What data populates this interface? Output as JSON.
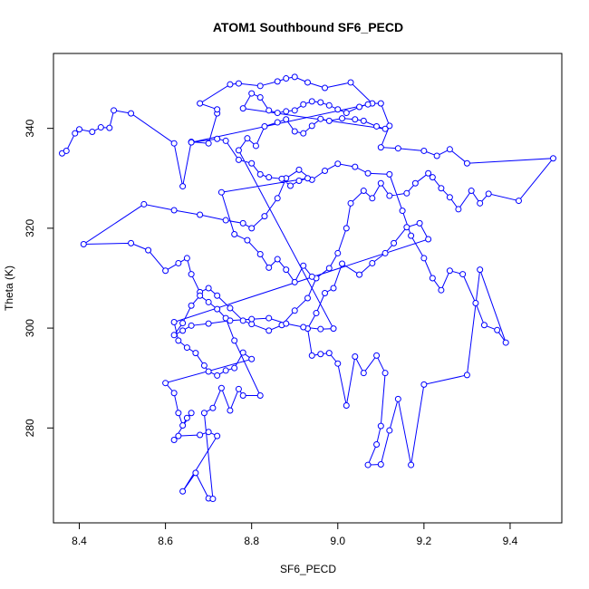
{
  "chart_data": {
    "type": "scatter",
    "title": "ATOM1 Southbound SF6_PECD",
    "xlabel": "SF6_PECD",
    "ylabel": "Theta (K)",
    "xlim": [
      8.34,
      9.52
    ],
    "ylim": [
      261,
      355
    ],
    "xticks": [
      8.4,
      8.6,
      8.8,
      9.0,
      9.2,
      9.4
    ],
    "yticks": [
      280,
      300,
      320,
      340
    ],
    "tick_labels_x": [
      "8.4",
      "8.6",
      "8.8",
      "9.0",
      "9.2",
      "9.4"
    ],
    "tick_labels_y": [
      "280",
      "300",
      "320",
      "340"
    ],
    "grid": false,
    "legend": "none",
    "series_color": "#0000ff",
    "marker": "open-circle",
    "connected": true,
    "points": [
      [
        8.36,
        335
      ],
      [
        8.37,
        335.5
      ],
      [
        8.39,
        339
      ],
      [
        8.4,
        339.8
      ],
      [
        8.43,
        339.3
      ],
      [
        8.45,
        340.2
      ],
      [
        8.47,
        340.1
      ],
      [
        8.48,
        343.6
      ],
      [
        8.52,
        343
      ],
      [
        8.62,
        337
      ],
      [
        8.64,
        328.4
      ],
      [
        8.66,
        337.3
      ],
      [
        8.7,
        337
      ],
      [
        8.72,
        343
      ],
      [
        8.72,
        343.8
      ],
      [
        8.68,
        345
      ],
      [
        8.75,
        348.8
      ],
      [
        8.77,
        349
      ],
      [
        8.82,
        348.5
      ],
      [
        8.86,
        349.4
      ],
      [
        8.88,
        350
      ],
      [
        8.9,
        350.3
      ],
      [
        8.93,
        349.2
      ],
      [
        8.97,
        348.1
      ],
      [
        9.03,
        349.2
      ],
      [
        9.08,
        345
      ],
      [
        9.1,
        345
      ],
      [
        9.12,
        340.5
      ],
      [
        9.1,
        336.2
      ],
      [
        9.14,
        336
      ],
      [
        9.2,
        335.5
      ],
      [
        9.23,
        334.5
      ],
      [
        9.26,
        335.8
      ],
      [
        9.3,
        333
      ],
      [
        9.5,
        334
      ],
      [
        9.42,
        325.5
      ],
      [
        9.35,
        326.9
      ],
      [
        9.33,
        325
      ],
      [
        9.31,
        327.5
      ],
      [
        9.28,
        323.8
      ],
      [
        9.26,
        326.2
      ],
      [
        9.24,
        328
      ],
      [
        9.22,
        330.2
      ],
      [
        9.21,
        331
      ],
      [
        9.18,
        329
      ],
      [
        9.16,
        327
      ],
      [
        9.12,
        326.5
      ],
      [
        9.1,
        329
      ],
      [
        9.08,
        326
      ],
      [
        9.06,
        327.5
      ],
      [
        9.03,
        325
      ],
      [
        9.02,
        320
      ],
      [
        9.0,
        315
      ],
      [
        8.98,
        312
      ],
      [
        8.95,
        310
      ],
      [
        8.93,
        306
      ],
      [
        8.9,
        303.5
      ],
      [
        8.87,
        300.6
      ],
      [
        8.84,
        299.5
      ],
      [
        8.8,
        300.8
      ],
      [
        8.78,
        301.5
      ],
      [
        8.75,
        304
      ],
      [
        8.72,
        306.5
      ],
      [
        8.7,
        308
      ],
      [
        8.68,
        307.2
      ],
      [
        8.66,
        310.8
      ],
      [
        8.65,
        314
      ],
      [
        8.63,
        313
      ],
      [
        8.6,
        311.5
      ],
      [
        8.56,
        315.6
      ],
      [
        8.52,
        317
      ],
      [
        8.41,
        316.8
      ],
      [
        8.55,
        324.8
      ],
      [
        8.62,
        323.6
      ],
      [
        8.68,
        322.7
      ],
      [
        8.74,
        321.6
      ],
      [
        8.78,
        321
      ],
      [
        8.8,
        320
      ],
      [
        8.83,
        322.4
      ],
      [
        8.86,
        326
      ],
      [
        8.88,
        330
      ],
      [
        8.91,
        331.7
      ],
      [
        8.94,
        329.7
      ],
      [
        8.97,
        331.5
      ],
      [
        9.0,
        332.9
      ],
      [
        9.04,
        332.3
      ],
      [
        9.07,
        331
      ],
      [
        9.12,
        330.8
      ],
      [
        9.15,
        323.5
      ],
      [
        9.17,
        318.5
      ],
      [
        9.2,
        314
      ],
      [
        9.22,
        310
      ],
      [
        9.24,
        307.6
      ],
      [
        9.26,
        311.5
      ],
      [
        9.29,
        310.8
      ],
      [
        9.32,
        305
      ],
      [
        9.34,
        300.6
      ],
      [
        9.37,
        299.6
      ],
      [
        9.39,
        297.1
      ],
      [
        9.33,
        311.7
      ],
      [
        9.3,
        290.6
      ],
      [
        9.2,
        288.7
      ],
      [
        9.17,
        272.6
      ],
      [
        9.14,
        285.8
      ],
      [
        9.12,
        279.5
      ],
      [
        9.1,
        272.7
      ],
      [
        9.07,
        272.6
      ],
      [
        9.09,
        276.7
      ],
      [
        9.1,
        280.4
      ],
      [
        9.11,
        291
      ],
      [
        9.09,
        294.5
      ],
      [
        9.06,
        291
      ],
      [
        9.04,
        294.3
      ],
      [
        9.02,
        284.5
      ],
      [
        9.0,
        292.9
      ],
      [
        8.98,
        295
      ],
      [
        8.96,
        294.8
      ],
      [
        8.94,
        294.5
      ],
      [
        8.93,
        299.9
      ],
      [
        8.95,
        303
      ],
      [
        8.97,
        307
      ],
      [
        8.99,
        308
      ],
      [
        9.01,
        312.9
      ],
      [
        9.05,
        310.7
      ],
      [
        9.08,
        313
      ],
      [
        9.11,
        315
      ],
      [
        9.13,
        317
      ],
      [
        9.16,
        320.2
      ],
      [
        9.19,
        321
      ],
      [
        9.21,
        317.8
      ],
      [
        8.62,
        301.2
      ],
      [
        8.63,
        297.5
      ],
      [
        8.65,
        296.1
      ],
      [
        8.67,
        295
      ],
      [
        8.69,
        292.5
      ],
      [
        8.7,
        291.3
      ],
      [
        8.72,
        290.5
      ],
      [
        8.74,
        291.5
      ],
      [
        8.76,
        292
      ],
      [
        8.78,
        295.1
      ],
      [
        8.8,
        293.8
      ],
      [
        8.6,
        289
      ],
      [
        8.62,
        287
      ],
      [
        8.63,
        283
      ],
      [
        8.64,
        280.5
      ],
      [
        8.65,
        282
      ],
      [
        8.66,
        283
      ],
      [
        8.62,
        277.6
      ],
      [
        8.63,
        278.4
      ],
      [
        8.68,
        278.6
      ],
      [
        8.7,
        279.2
      ],
      [
        8.72,
        278.4
      ],
      [
        8.64,
        267.3
      ],
      [
        8.67,
        271
      ],
      [
        8.7,
        265.9
      ],
      [
        8.71,
        265.8
      ],
      [
        8.69,
        283
      ],
      [
        8.71,
        284
      ],
      [
        8.73,
        288
      ],
      [
        8.75,
        283.5
      ],
      [
        8.77,
        287.8
      ],
      [
        8.78,
        286.5
      ],
      [
        8.82,
        286.5
      ],
      [
        8.76,
        297.5
      ],
      [
        8.74,
        302
      ],
      [
        8.72,
        303.8
      ],
      [
        8.7,
        305.2
      ],
      [
        8.68,
        306.5
      ],
      [
        8.66,
        304.5
      ],
      [
        8.64,
        301
      ],
      [
        8.62,
        298.6
      ],
      [
        8.64,
        299.5
      ],
      [
        8.66,
        300.5
      ],
      [
        8.7,
        300.9
      ],
      [
        8.75,
        301.5
      ],
      [
        8.8,
        301.8
      ],
      [
        8.84,
        302
      ],
      [
        8.88,
        300.9
      ],
      [
        8.92,
        300.2
      ],
      [
        8.96,
        299.8
      ],
      [
        8.99,
        299.9
      ],
      [
        8.77,
        335.6
      ],
      [
        8.79,
        338
      ],
      [
        8.81,
        336.5
      ],
      [
        8.83,
        340.4
      ],
      [
        8.86,
        341.2
      ],
      [
        8.88,
        341.8
      ],
      [
        8.9,
        339.4
      ],
      [
        8.92,
        339
      ],
      [
        8.94,
        340.5
      ],
      [
        8.96,
        341.9
      ],
      [
        8.98,
        341.5
      ],
      [
        9.01,
        342
      ],
      [
        9.04,
        341.8
      ],
      [
        9.06,
        341.5
      ],
      [
        9.09,
        340.4
      ],
      [
        9.11,
        339.9
      ],
      [
        8.78,
        344
      ],
      [
        8.8,
        347
      ],
      [
        8.82,
        346.2
      ],
      [
        8.84,
        343.6
      ],
      [
        8.86,
        343.1
      ],
      [
        8.88,
        343.4
      ],
      [
        8.9,
        343.6
      ],
      [
        8.92,
        344.8
      ],
      [
        8.94,
        345.4
      ],
      [
        8.96,
        345.2
      ],
      [
        8.98,
        344.6
      ],
      [
        9.0,
        343.8
      ],
      [
        9.02,
        343.1
      ],
      [
        9.05,
        344.3
      ],
      [
        9.07,
        344.8
      ],
      [
        8.66,
        337.2
      ],
      [
        8.72,
        337.9
      ],
      [
        8.74,
        337.5
      ],
      [
        8.77,
        333.7
      ],
      [
        8.8,
        333
      ],
      [
        8.82,
        330.8
      ],
      [
        8.84,
        330.2
      ],
      [
        8.87,
        329.9
      ],
      [
        8.89,
        328.5
      ],
      [
        8.91,
        329.5
      ],
      [
        8.93,
        330
      ],
      [
        8.73,
        327.2
      ],
      [
        8.76,
        318.8
      ],
      [
        8.79,
        317.6
      ],
      [
        8.82,
        314.8
      ],
      [
        8.84,
        312.1
      ],
      [
        8.86,
        313.8
      ],
      [
        8.88,
        311.7
      ],
      [
        8.9,
        309.2
      ],
      [
        8.92,
        312.5
      ],
      [
        8.94,
        310.3
      ]
    ]
  }
}
